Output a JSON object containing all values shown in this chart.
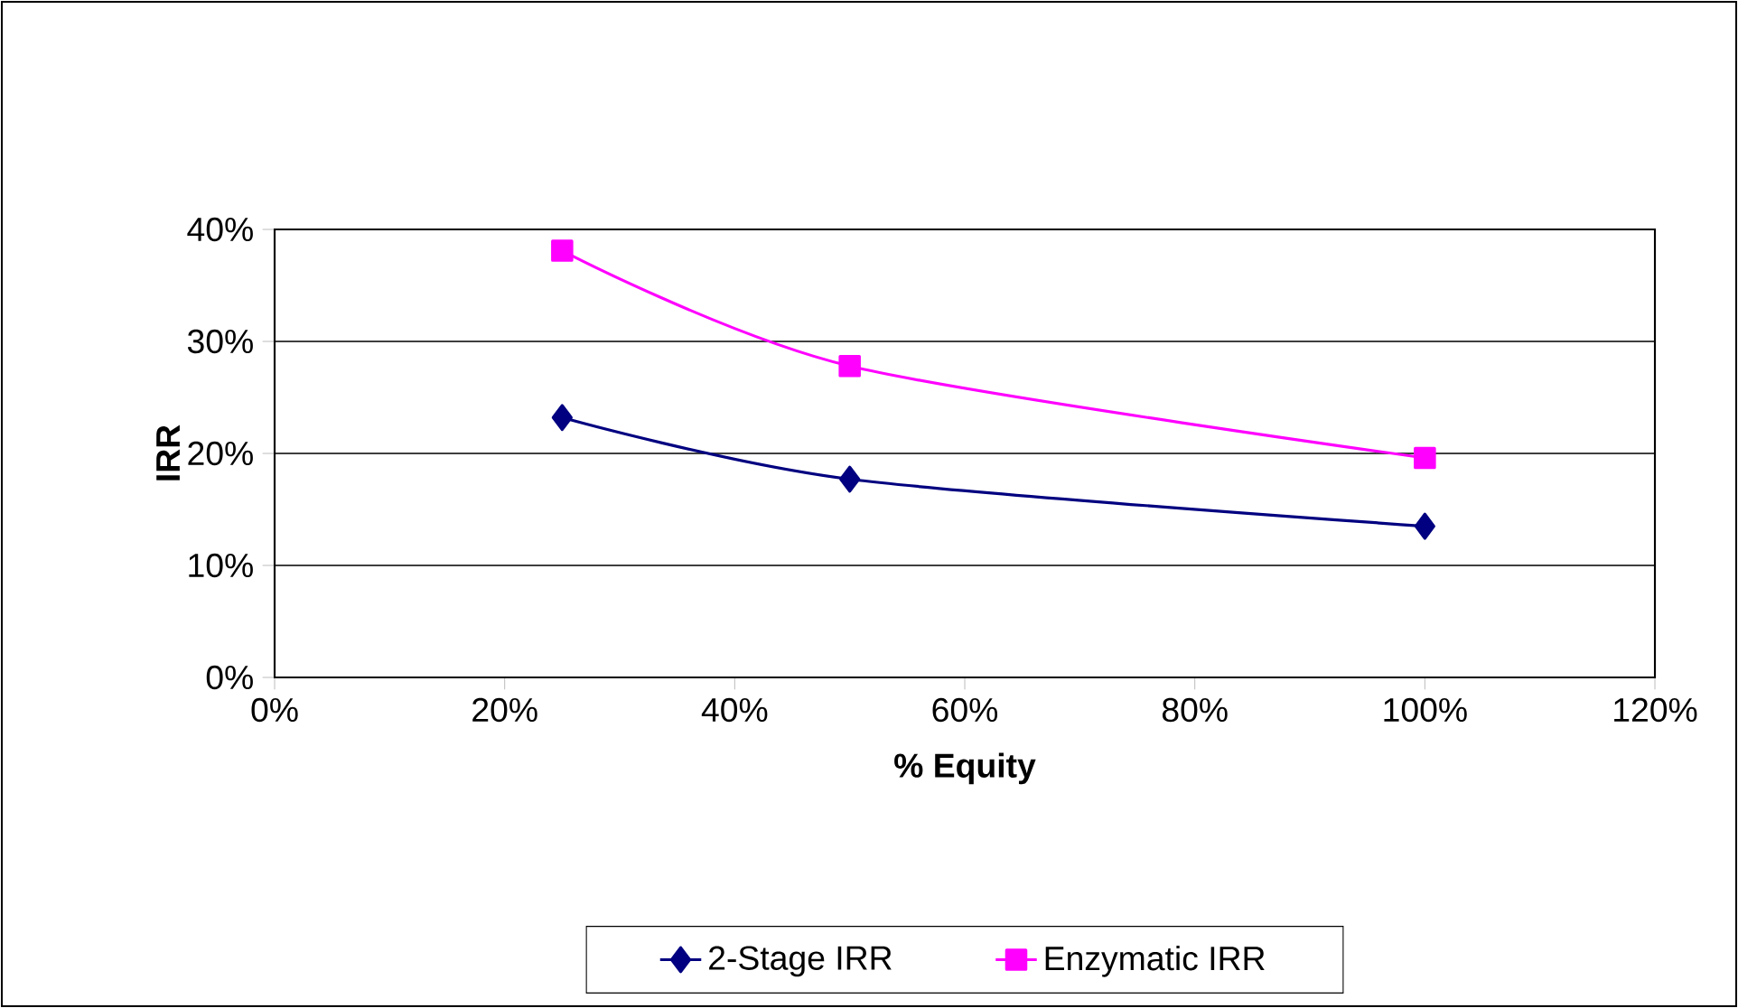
{
  "chart_data": {
    "type": "line",
    "xlabel": "% Equity",
    "ylabel": "IRR",
    "x": [
      25,
      50,
      100
    ],
    "series": [
      {
        "name": "2-Stage IRR",
        "color": "#000080",
        "marker": "diamond",
        "values": [
          23.2,
          17.7,
          13.5
        ]
      },
      {
        "name": "Enzymatic IRR",
        "color": "#ff00ff",
        "marker": "square",
        "values": [
          38.1,
          27.8,
          19.6
        ]
      }
    ],
    "xlim": [
      0,
      120
    ],
    "xticks": [
      {
        "value": 0,
        "label": "0%"
      },
      {
        "value": 20,
        "label": "20%"
      },
      {
        "value": 40,
        "label": "40%"
      },
      {
        "value": 60,
        "label": "60%"
      },
      {
        "value": 80,
        "label": "80%"
      },
      {
        "value": 100,
        "label": "100%"
      },
      {
        "value": 120,
        "label": "120%"
      }
    ],
    "ylim": [
      0,
      40
    ],
    "yticks": [
      {
        "value": 0,
        "label": "0%"
      },
      {
        "value": 10,
        "label": "10%"
      },
      {
        "value": 20,
        "label": "20%"
      },
      {
        "value": 30,
        "label": "30%"
      },
      {
        "value": 40,
        "label": "40%"
      }
    ],
    "grid": "y",
    "legend": "bottom",
    "line_style": "solid"
  }
}
